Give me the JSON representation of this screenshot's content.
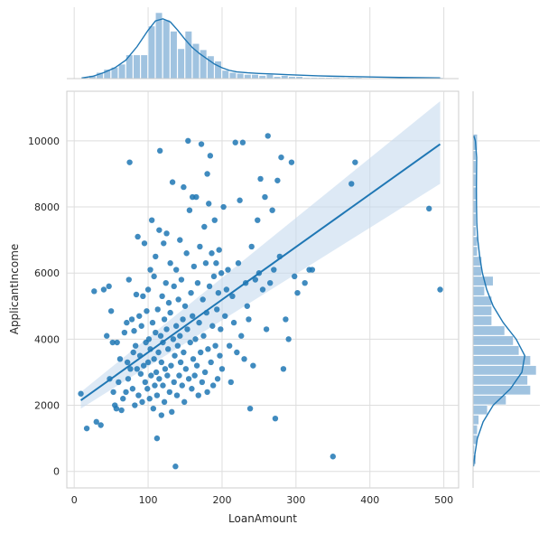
{
  "chart_data": {
    "type": "scatter",
    "xlabel": "LoanAmount",
    "ylabel": "ApplicantIncome",
    "xlim": [
      -10,
      520
    ],
    "ylim": [
      -500,
      11500
    ],
    "x_ticks": [
      0,
      100,
      200,
      300,
      400,
      500
    ],
    "y_ticks": [
      0,
      2000,
      4000,
      6000,
      8000,
      10000
    ],
    "x_tick_labels": [
      "0",
      "100",
      "200",
      "300",
      "400",
      "500"
    ],
    "y_tick_labels": [
      "0",
      "2000",
      "4000",
      "6000",
      "8000",
      "10000"
    ],
    "grid": true,
    "colors": {
      "points": "#1f77b4",
      "line": "#1f77b4",
      "band": "#c6dbef",
      "hist": "#8fb8da"
    },
    "regression": {
      "x": [
        9,
        495
      ],
      "y": [
        2150,
        9900
      ],
      "ci_start": [
        1900,
        2400
      ],
      "ci_end": [
        8700,
        11200
      ]
    },
    "points": [
      [
        9,
        2350
      ],
      [
        17,
        1300
      ],
      [
        27,
        5450
      ],
      [
        30,
        1500
      ],
      [
        36,
        1400
      ],
      [
        40,
        5500
      ],
      [
        44,
        4100
      ],
      [
        47,
        5600
      ],
      [
        48,
        2800
      ],
      [
        50,
        4850
      ],
      [
        52,
        3900
      ],
      [
        53,
        2400
      ],
      [
        55,
        2000
      ],
      [
        57,
        1900
      ],
      [
        58,
        3900
      ],
      [
        60,
        2700
      ],
      [
        62,
        3400
      ],
      [
        64,
        1850
      ],
      [
        66,
        2200
      ],
      [
        68,
        4200
      ],
      [
        70,
        2400
      ],
      [
        71,
        4500
      ],
      [
        72,
        3300
      ],
      [
        73,
        2800
      ],
      [
        74,
        5800
      ],
      [
        75,
        9350
      ],
      [
        76,
        3100
      ],
      [
        78,
        4600
      ],
      [
        79,
        2500
      ],
      [
        80,
        3600
      ],
      [
        81,
        4250
      ],
      [
        82,
        2000
      ],
      [
        83,
        3800
      ],
      [
        84,
        5350
      ],
      [
        85,
        3100
      ],
      [
        86,
        7100
      ],
      [
        87,
        2300
      ],
      [
        88,
        4700
      ],
      [
        89,
        3500
      ],
      [
        90,
        2950
      ],
      [
        91,
        4400
      ],
      [
        92,
        2100
      ],
      [
        93,
        5300
      ],
      [
        94,
        3200
      ],
      [
        95,
        6900
      ],
      [
        96,
        2700
      ],
      [
        97,
        3900
      ],
      [
        98,
        4850
      ],
      [
        99,
        2500
      ],
      [
        100,
        5500
      ],
      [
        100,
        3300
      ],
      [
        101,
        4000
      ],
      [
        102,
        2200
      ],
      [
        103,
        6100
      ],
      [
        103,
        3700
      ],
      [
        104,
        2900
      ],
      [
        105,
        7600
      ],
      [
        106,
        4500
      ],
      [
        107,
        1900
      ],
      [
        108,
        5900
      ],
      [
        108,
        3400
      ],
      [
        109,
        2600
      ],
      [
        110,
        6500
      ],
      [
        110,
        4200
      ],
      [
        111,
        3000
      ],
      [
        112,
        2300
      ],
      [
        112,
        1000
      ],
      [
        113,
        4900
      ],
      [
        114,
        3600
      ],
      [
        115,
        7300
      ],
      [
        115,
        2800
      ],
      [
        116,
        9700
      ],
      [
        117,
        4100
      ],
      [
        118,
        3300
      ],
      [
        118,
        1700
      ],
      [
        119,
        5300
      ],
      [
        120,
        2600
      ],
      [
        120,
        3900
      ],
      [
        121,
        6900
      ],
      [
        122,
        4600
      ],
      [
        122,
        2100
      ],
      [
        123,
        3100
      ],
      [
        124,
        5700
      ],
      [
        125,
        7200
      ],
      [
        125,
        4300
      ],
      [
        126,
        2900
      ],
      [
        127,
        3700
      ],
      [
        128,
        5100
      ],
      [
        129,
        2400
      ],
      [
        130,
        6300
      ],
      [
        130,
        4800
      ],
      [
        131,
        3200
      ],
      [
        132,
        1800
      ],
      [
        133,
        8750
      ],
      [
        134,
        4000
      ],
      [
        135,
        2700
      ],
      [
        135,
        5600
      ],
      [
        136,
        3500
      ],
      [
        137,
        150
      ],
      [
        138,
        4400
      ],
      [
        138,
        6100
      ],
      [
        139,
        2300
      ],
      [
        140,
        3800
      ],
      [
        141,
        5200
      ],
      [
        142,
        2900
      ],
      [
        143,
        7000
      ],
      [
        143,
        4100
      ],
      [
        144,
        3300
      ],
      [
        145,
        5800
      ],
      [
        146,
        2600
      ],
      [
        147,
        4600
      ],
      [
        148,
        8600
      ],
      [
        148,
        3600
      ],
      [
        149,
        2100
      ],
      [
        150,
        5000
      ],
      [
        151,
        3100
      ],
      [
        152,
        6600
      ],
      [
        153,
        4300
      ],
      [
        154,
        10000
      ],
      [
        155,
        2800
      ],
      [
        156,
        7900
      ],
      [
        157,
        3900
      ],
      [
        158,
        5400
      ],
      [
        159,
        2500
      ],
      [
        160,
        8300
      ],
      [
        160,
        4700
      ],
      [
        161,
        3400
      ],
      [
        162,
        6200
      ],
      [
        163,
        2900
      ],
      [
        164,
        4000
      ],
      [
        165,
        8300
      ],
      [
        166,
        3200
      ],
      [
        167,
        5700
      ],
      [
        168,
        2300
      ],
      [
        169,
        4500
      ],
      [
        170,
        6800
      ],
      [
        171,
        3600
      ],
      [
        172,
        9900
      ],
      [
        173,
        2700
      ],
      [
        174,
        5200
      ],
      [
        175,
        4100
      ],
      [
        176,
        7400
      ],
      [
        177,
        3000
      ],
      [
        178,
        6300
      ],
      [
        179,
        4800
      ],
      [
        180,
        9000
      ],
      [
        180,
        2400
      ],
      [
        181,
        3700
      ],
      [
        182,
        8100
      ],
      [
        183,
        5600
      ],
      [
        184,
        9550
      ],
      [
        185,
        3300
      ],
      [
        186,
        6600
      ],
      [
        187,
        4400
      ],
      [
        188,
        2600
      ],
      [
        189,
        5900
      ],
      [
        190,
        7600
      ],
      [
        191,
        3800
      ],
      [
        192,
        6300
      ],
      [
        193,
        4900
      ],
      [
        194,
        2800
      ],
      [
        195,
        5400
      ],
      [
        196,
        6700
      ],
      [
        197,
        3500
      ],
      [
        198,
        4300
      ],
      [
        199,
        6000
      ],
      [
        200,
        3100
      ],
      [
        202,
        8000
      ],
      [
        204,
        4700
      ],
      [
        206,
        5500
      ],
      [
        208,
        6100
      ],
      [
        210,
        3800
      ],
      [
        212,
        2700
      ],
      [
        214,
        5300
      ],
      [
        216,
        4500
      ],
      [
        218,
        9950
      ],
      [
        220,
        3600
      ],
      [
        222,
        6300
      ],
      [
        224,
        8200
      ],
      [
        226,
        4100
      ],
      [
        228,
        9950
      ],
      [
        230,
        3400
      ],
      [
        232,
        5700
      ],
      [
        234,
        5000
      ],
      [
        236,
        4600
      ],
      [
        238,
        1900
      ],
      [
        240,
        6800
      ],
      [
        242,
        3200
      ],
      [
        245,
        5800
      ],
      [
        248,
        7600
      ],
      [
        250,
        6000
      ],
      [
        252,
        8850
      ],
      [
        255,
        5500
      ],
      [
        258,
        8300
      ],
      [
        260,
        4300
      ],
      [
        262,
        10150
      ],
      [
        265,
        5700
      ],
      [
        268,
        7900
      ],
      [
        270,
        6100
      ],
      [
        272,
        1600
      ],
      [
        275,
        8800
      ],
      [
        278,
        6500
      ],
      [
        280,
        9500
      ],
      [
        283,
        3100
      ],
      [
        286,
        4600
      ],
      [
        290,
        4000
      ],
      [
        294,
        9350
      ],
      [
        298,
        5900
      ],
      [
        302,
        5400
      ],
      [
        312,
        5700
      ],
      [
        318,
        6100
      ],
      [
        322,
        6100
      ],
      [
        350,
        450
      ],
      [
        375,
        8700
      ],
      [
        380,
        9350
      ],
      [
        480,
        7950
      ],
      [
        495,
        5500
      ]
    ],
    "hist_x": {
      "bins": [
        [
          10,
          20
        ],
        [
          20,
          30
        ],
        [
          30,
          40
        ],
        [
          40,
          50
        ],
        [
          50,
          60
        ],
        [
          60,
          70
        ],
        [
          70,
          80
        ],
        [
          80,
          90
        ],
        [
          90,
          100
        ],
        [
          100,
          110
        ],
        [
          110,
          120
        ],
        [
          120,
          130
        ],
        [
          130,
          140
        ],
        [
          140,
          150
        ],
        [
          150,
          160
        ],
        [
          160,
          170
        ],
        [
          170,
          180
        ],
        [
          180,
          190
        ],
        [
          190,
          200
        ],
        [
          200,
          210
        ],
        [
          210,
          220
        ],
        [
          220,
          230
        ],
        [
          230,
          240
        ],
        [
          240,
          250
        ],
        [
          250,
          260
        ],
        [
          260,
          270
        ],
        [
          270,
          280
        ],
        [
          280,
          290
        ],
        [
          290,
          300
        ],
        [
          300,
          310
        ],
        [
          310,
          320
        ],
        [
          320,
          330
        ],
        [
          330,
          340
        ],
        [
          340,
          350
        ],
        [
          350,
          360
        ],
        [
          360,
          370
        ],
        [
          370,
          380
        ],
        [
          380,
          390
        ],
        [
          390,
          400
        ],
        [
          400,
          410
        ],
        [
          410,
          420
        ],
        [
          420,
          430
        ],
        [
          430,
          440
        ],
        [
          440,
          450
        ],
        [
          450,
          460
        ],
        [
          460,
          470
        ],
        [
          470,
          480
        ],
        [
          480,
          490
        ],
        [
          490,
          500
        ]
      ],
      "counts": [
        1,
        3,
        6,
        9,
        11,
        14,
        23,
        23,
        23,
        51,
        64,
        57,
        46,
        29,
        46,
        34,
        28,
        22,
        17,
        8,
        6,
        5,
        4,
        4,
        3,
        4,
        2,
        3,
        2,
        2,
        1,
        1,
        1,
        1,
        1,
        0,
        1,
        1,
        0,
        0,
        0,
        0,
        0,
        0,
        0,
        0,
        0,
        1,
        1
      ],
      "kde": [
        [
          10,
          0.6
        ],
        [
          25,
          2.2
        ],
        [
          40,
          5.8
        ],
        [
          55,
          10.5
        ],
        [
          70,
          18
        ],
        [
          85,
          31
        ],
        [
          100,
          47
        ],
        [
          110,
          56
        ],
        [
          120,
          58
        ],
        [
          130,
          55
        ],
        [
          140,
          47
        ],
        [
          150,
          38
        ],
        [
          160,
          30
        ],
        [
          170,
          24
        ],
        [
          180,
          19
        ],
        [
          190,
          14
        ],
        [
          200,
          10.5
        ],
        [
          210,
          8
        ],
        [
          220,
          6.5
        ],
        [
          235,
          5.6
        ],
        [
          250,
          5
        ],
        [
          270,
          4.4
        ],
        [
          290,
          3.8
        ],
        [
          310,
          3.2
        ],
        [
          330,
          2.7
        ],
        [
          350,
          2.3
        ],
        [
          380,
          1.9
        ],
        [
          410,
          1.5
        ],
        [
          440,
          1.1
        ],
        [
          470,
          0.9
        ],
        [
          495,
          0.7
        ]
      ]
    },
    "hist_y": {
      "bins": [
        [
          200,
          500
        ],
        [
          500,
          800
        ],
        [
          800,
          1100
        ],
        [
          1100,
          1400
        ],
        [
          1400,
          1700
        ],
        [
          1700,
          2000
        ],
        [
          2000,
          2300
        ],
        [
          2300,
          2600
        ],
        [
          2600,
          2900
        ],
        [
          2900,
          3200
        ],
        [
          3200,
          3500
        ],
        [
          3500,
          3800
        ],
        [
          3800,
          4100
        ],
        [
          4100,
          4400
        ],
        [
          4400,
          4700
        ],
        [
          4700,
          5000
        ],
        [
          5000,
          5300
        ],
        [
          5300,
          5600
        ],
        [
          5600,
          5900
        ],
        [
          5900,
          6200
        ],
        [
          6200,
          6500
        ],
        [
          6500,
          6800
        ],
        [
          6800,
          7100
        ],
        [
          7100,
          7400
        ],
        [
          7400,
          7800
        ],
        [
          7800,
          8200
        ],
        [
          8200,
          8600
        ],
        [
          8600,
          9000
        ],
        [
          9000,
          9400
        ],
        [
          9400,
          9700
        ],
        [
          9700,
          10200
        ]
      ],
      "counts": [
        2,
        1,
        3,
        3,
        4,
        10,
        23,
        40,
        38,
        44,
        40,
        32,
        28,
        22,
        13,
        13,
        13,
        8,
        14,
        6,
        6,
        3,
        3,
        2,
        2,
        2,
        3,
        2,
        2,
        2,
        3
      ],
      "kde": [
        [
          150,
          0.3
        ],
        [
          500,
          1.2
        ],
        [
          1000,
          3
        ],
        [
          1500,
          7
        ],
        [
          2000,
          14
        ],
        [
          2500,
          26
        ],
        [
          3000,
          34
        ],
        [
          3500,
          36
        ],
        [
          4000,
          30
        ],
        [
          4500,
          21
        ],
        [
          5000,
          14
        ],
        [
          5500,
          9.5
        ],
        [
          6000,
          6.5
        ],
        [
          6500,
          4.6
        ],
        [
          7000,
          3.3
        ],
        [
          7500,
          2.6
        ],
        [
          8000,
          2.4
        ],
        [
          8500,
          2.3
        ],
        [
          9000,
          2.4
        ],
        [
          9500,
          2.5
        ],
        [
          10000,
          1.6
        ],
        [
          10150,
          0.5
        ]
      ]
    }
  }
}
